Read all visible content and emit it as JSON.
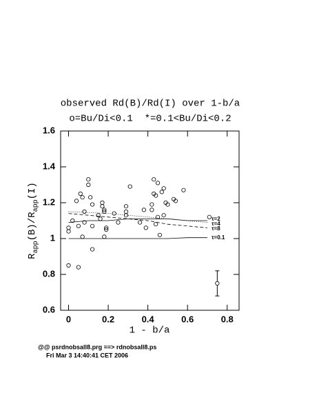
{
  "chart_data": {
    "type": "scatter",
    "title": "observed Rd(B)/Rd(I) over 1-b/a",
    "subtitle": "o=Bu/Di<0.1  *=0.1<Bu/Di<0.2",
    "xlabel": "1 - b/a",
    "ylabel": [
      "R",
      "app",
      "(B)/R",
      "app",
      "(I)"
    ],
    "x": [
      0,
      0,
      0,
      0.02,
      0.04,
      0.05,
      0.05,
      0.06,
      0.07,
      0.07,
      0.08,
      0.08,
      0.1,
      0.1,
      0.11,
      0.12,
      0.12,
      0.12,
      0.15,
      0.16,
      0.17,
      0.17,
      0.18,
      0.18,
      0.18,
      0.19,
      0.19,
      0.23,
      0.25,
      0.29,
      0.29,
      0.31,
      0.29,
      0.36,
      0.38,
      0.39,
      0.42,
      0.42,
      0.43,
      0.43,
      0.44,
      0.44,
      0.45,
      0.45,
      0.46,
      0.47,
      0.48,
      0.48,
      0.49,
      0.5,
      0.53,
      0.54,
      0.58,
      0.71
    ],
    "y": [
      0.85,
      1.06,
      1.04,
      1.1,
      1.21,
      0.84,
      1.07,
      1.25,
      1.23,
      1.01,
      1.09,
      1.15,
      1.33,
      1.3,
      1.23,
      1.19,
      0.94,
      1.07,
      1.13,
      1.11,
      1.2,
      1.18,
      1.16,
      1.01,
      1.15,
      1.06,
      1.05,
      1.14,
      1.09,
      1.18,
      1.13,
      1.29,
      1.15,
      1.09,
      1.16,
      1.06,
      1.19,
      1.16,
      1.25,
      1.33,
      1.08,
      1.24,
      1.12,
      1.31,
      1.02,
      1.26,
      1.28,
      1.13,
      1.2,
      1.19,
      1.22,
      1.21,
      1.27,
      1.12
    ],
    "series": [
      {
        "name": "τ=2",
        "dash": "dotted",
        "x": [
          0,
          0.1,
          0.2,
          0.3,
          0.4,
          0.5,
          0.6,
          0.7
        ],
        "values": [
          1.15,
          1.145,
          1.14,
          1.13,
          1.12,
          1.11,
          1.1,
          1.09
        ]
      },
      {
        "name": "τ=4",
        "dash": "dashed",
        "x": [
          0,
          0.1,
          0.2,
          0.3,
          0.4,
          0.5,
          0.6,
          0.7
        ],
        "values": [
          1.14,
          1.13,
          1.12,
          1.11,
          1.1,
          1.08,
          1.07,
          1.06
        ]
      },
      {
        "name": "τ=8",
        "dash": "solid",
        "x": [
          0,
          0.1,
          0.2,
          0.3,
          0.4,
          0.5,
          0.6,
          0.7
        ],
        "values": [
          1.09,
          1.1,
          1.1,
          1.11,
          1.11,
          1.11,
          1.1,
          1.1
        ]
      },
      {
        "name": "τ=0.1",
        "dash": "solid",
        "x": [
          0,
          0.1,
          0.2,
          0.3,
          0.4,
          0.5,
          0.6,
          0.7
        ],
        "values": [
          1,
          1,
          1,
          1,
          1,
          1,
          1.005,
          1.005
        ]
      }
    ],
    "errorbar": {
      "x": 0.75,
      "y": 0.75,
      "err": 0.07
    },
    "xlim": [
      -0.04,
      0.86
    ],
    "ylim": [
      0.6,
      1.6
    ],
    "xticks": [
      0,
      0.2,
      0.4,
      0.6,
      0.8
    ],
    "yticks": [
      0.6,
      0.8,
      1,
      1.2,
      1.4,
      1.6
    ]
  },
  "footer": [
    "@@ psrdnobsall8.prg ==> rdnobsall8.ps",
    "Fri Mar 3 14:40:41 CET 2006"
  ]
}
